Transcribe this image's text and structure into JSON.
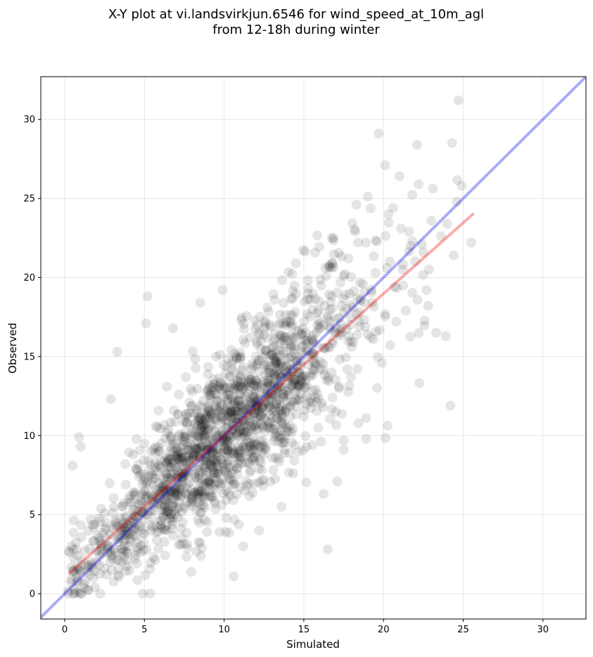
{
  "chart_data": {
    "type": "scatter",
    "title_lines": [
      "X-Y plot at vi.landsvirkjun.6546 for wind_speed_at_10m_agl",
      "from 12-18h during winter"
    ],
    "xlabel": "Simulated",
    "ylabel": "Observed",
    "xlim": [
      -1.5,
      32.7
    ],
    "ylim": [
      -1.6,
      32.7
    ],
    "xticks": [
      0,
      5,
      10,
      15,
      20,
      25,
      30
    ],
    "yticks": [
      0,
      5,
      10,
      15,
      20,
      25,
      30
    ],
    "grid": true,
    "point_color": "#000000",
    "point_alpha": 0.1,
    "points_visible": {
      "x": [
        0.5,
        0.9,
        1.0,
        2.9,
        3.3,
        3.8,
        4.3,
        5.2,
        5.1,
        6.8,
        7.6,
        8.5,
        9.5,
        9.9,
        10.1,
        10.6,
        11.2,
        12.2,
        13.6,
        14.3,
        14.5,
        15.4,
        16.2,
        16.5,
        17.1,
        17.5,
        17.8,
        18.3,
        18.9,
        19.2,
        19.7,
        20.1,
        20.3,
        20.6,
        21.0,
        21.1,
        21.6,
        22.1,
        22.2,
        22.4,
        22.7,
        23.3,
        24.2,
        24.3,
        24.4,
        24.7,
        24.9,
        25.5,
        2.0,
        1.5,
        0.8,
        3.6,
        8.2,
        9.1,
        12.5,
        13.8,
        10.5,
        9.6,
        8.7,
        6.4,
        11.7,
        12.9,
        14.0,
        15.9,
        16.3,
        17.6,
        18.7,
        19.5,
        20.4,
        21.8,
        18.0,
        19.0,
        20.8,
        21.4,
        19.9,
        22.8,
        17.2,
        16.8,
        15.0,
        13.2,
        12.0,
        11.0,
        10.0,
        9.0,
        8.0,
        7.0,
        6.0,
        5.0,
        4.0,
        3.0,
        2.5,
        1.8,
        1.2,
        0.6,
        14.8,
        15.6,
        16.9,
        17.9,
        18.5,
        19.3,
        20.7,
        21.2,
        22.5,
        23.6,
        24.0,
        13.0,
        12.4,
        11.4,
        10.9,
        9.3,
        8.9,
        7.4,
        6.6,
        5.6,
        4.6,
        3.4,
        2.2,
        1.4,
        0.4,
        1.9,
        3.1,
        4.9,
        6.2,
        7.8,
        9.8,
        11.6,
        13.4,
        15.2,
        17.0,
        18.8,
        20.2,
        21.7,
        23.0,
        24.6,
        16.0,
        14.6,
        12.8,
        10.8,
        8.4,
        6.9,
        4.4,
        2.7,
        1.6,
        0.7
      ],
      "y": [
        8.1,
        9.9,
        9.3,
        12.3,
        15.3,
        8.2,
        8.8,
        18.8,
        17.1,
        16.8,
        13.7,
        18.4,
        15.0,
        19.2,
        3.9,
        1.1,
        3.0,
        4.0,
        5.5,
        16.2,
        20.9,
        18.6,
        11.8,
        2.8,
        7.1,
        9.1,
        21.2,
        24.6,
        9.8,
        16.2,
        29.1,
        27.1,
        24.0,
        24.4,
        26.4,
        23.1,
        22.9,
        28.4,
        25.9,
        22.1,
        19.2,
        16.5,
        11.9,
        28.5,
        21.4,
        31.2,
        25.8,
        22.2,
        2.0,
        1.8,
        2.4,
        2.6,
        6.4,
        7.2,
        8.8,
        9.6,
        10.4,
        11.6,
        12.2,
        13.1,
        14.2,
        15.1,
        16.0,
        17.3,
        18.2,
        18.9,
        19.6,
        20.3,
        21.0,
        22.3,
        15.6,
        16.4,
        17.2,
        17.9,
        14.6,
        18.2,
        13.0,
        12.4,
        11.2,
        10.1,
        9.4,
        8.6,
        7.8,
        7.0,
        6.2,
        5.4,
        4.6,
        3.8,
        3.0,
        2.2,
        1.6,
        1.0,
        0.6,
        0.3,
        14.4,
        15.2,
        16.6,
        17.0,
        17.8,
        18.4,
        19.4,
        20.5,
        21.6,
        22.6,
        23.4,
        12.6,
        11.8,
        10.6,
        10.2,
        9.0,
        8.4,
        7.4,
        6.6,
        5.8,
        4.8,
        3.6,
        2.4,
        1.4,
        0.9,
        0.4,
        2.8,
        5.2,
        6.8,
        8.2,
        10.8,
        12.2,
        13.9,
        15.4,
        17.4,
        19.1,
        20.6,
        22.0,
        23.6,
        24.8,
        16.8,
        14.0,
        12.0,
        10.0,
        8.0,
        6.0,
        4.2,
        2.6,
        1.2,
        0.1
      ]
    },
    "density_cloud": {
      "center_line_slope": 1.0,
      "note_values": [
        0,
        25
      ]
    },
    "lines": [
      {
        "name": "1:1 line",
        "color": "#0000ee",
        "alpha": 0.33,
        "x": [
          -1.5,
          32.7
        ],
        "y": [
          -1.5,
          32.7
        ]
      },
      {
        "name": "regression",
        "color": "#ee0000",
        "alpha": 0.33,
        "x": [
          0.3,
          25.6
        ],
        "y": [
          1.3,
          24.0
        ]
      }
    ]
  }
}
